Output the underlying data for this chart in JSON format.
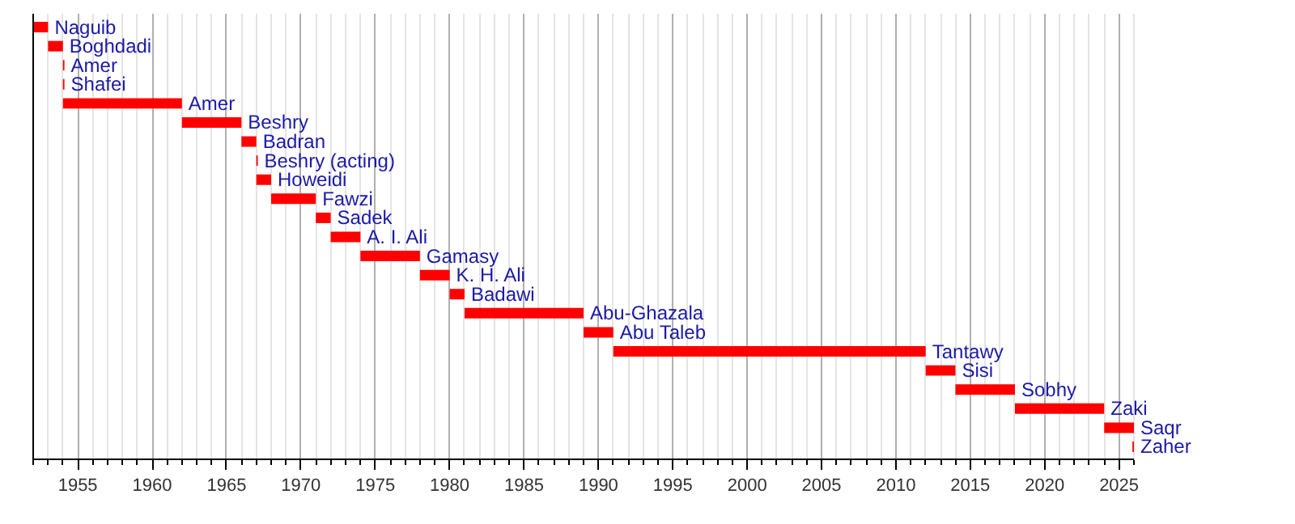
{
  "chart_data": {
    "type": "bar",
    "orientation": "horizontal",
    "categories": [
      "Naguib",
      "Boghdadi",
      "Amer",
      "Shafei",
      "Amer",
      "Beshry",
      "Badran",
      "Beshry (acting)",
      "Howeidi",
      "Fawzi",
      "Sadek",
      "A. I. Ali",
      "Gamasy",
      "K. H. Ali",
      "Badawi",
      "Abu-Ghazala",
      "Abu Taleb",
      "Tantawy",
      "Sisi",
      "Sobhy",
      "Zaki",
      "Saqr",
      "Zaher"
    ],
    "base": [
      1952,
      1953,
      1954,
      1954,
      1954,
      1962,
      1966,
      1967,
      1967,
      1968,
      1971,
      1972,
      1974,
      1978,
      1980,
      1981,
      1989,
      1991,
      2012,
      2014,
      2018,
      2024,
      2025.9
    ],
    "values": [
      1,
      1,
      0.1,
      0.1,
      8,
      4,
      1,
      0.1,
      1,
      3,
      1,
      2,
      4,
      2,
      1,
      8,
      2,
      21,
      2,
      4,
      6,
      2,
      0.1
    ],
    "color": "#ff0000",
    "xlim": [
      1952,
      2026
    ],
    "xticks": [
      1955,
      1960,
      1965,
      1970,
      1975,
      1980,
      1985,
      1990,
      1995,
      2000,
      2005,
      2010,
      2015,
      2020,
      2025
    ],
    "grid": "x"
  }
}
